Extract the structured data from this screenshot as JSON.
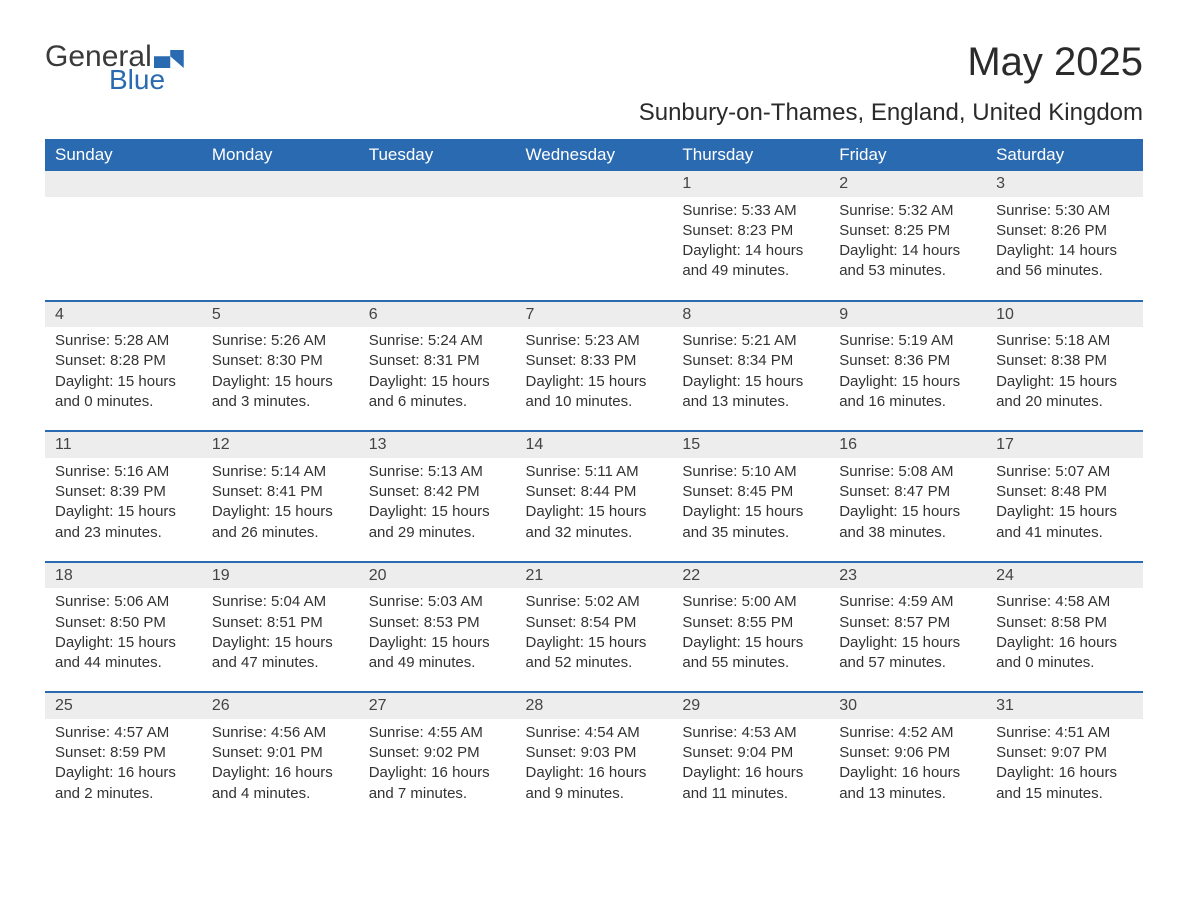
{
  "logo": {
    "text1": "General",
    "text2": "Blue",
    "accent_color": "#2a6ab0"
  },
  "title": "May 2025",
  "subtitle": "Sunbury-on-Thames, England, United Kingdom",
  "colors": {
    "header_bg": "#2a6ab0",
    "header_text": "#ffffff",
    "daynum_bg": "#ededed",
    "daynum_border": "#2a6ab0",
    "body_text": "#333333",
    "page_bg": "#ffffff"
  },
  "typography": {
    "title_fontsize": 40,
    "subtitle_fontsize": 24,
    "header_fontsize": 17,
    "cell_fontsize": 15,
    "font_family": "Arial"
  },
  "layout": {
    "columns": 7,
    "rows": 5,
    "first_day_column_index": 4
  },
  "weekdays": [
    "Sunday",
    "Monday",
    "Tuesday",
    "Wednesday",
    "Thursday",
    "Friday",
    "Saturday"
  ],
  "labels": {
    "sunrise": "Sunrise:",
    "sunset": "Sunset:",
    "daylight": "Daylight:"
  },
  "days": [
    {
      "n": 1,
      "sunrise": "5:33 AM",
      "sunset": "8:23 PM",
      "daylight": "14 hours and 49 minutes."
    },
    {
      "n": 2,
      "sunrise": "5:32 AM",
      "sunset": "8:25 PM",
      "daylight": "14 hours and 53 minutes."
    },
    {
      "n": 3,
      "sunrise": "5:30 AM",
      "sunset": "8:26 PM",
      "daylight": "14 hours and 56 minutes."
    },
    {
      "n": 4,
      "sunrise": "5:28 AM",
      "sunset": "8:28 PM",
      "daylight": "15 hours and 0 minutes."
    },
    {
      "n": 5,
      "sunrise": "5:26 AM",
      "sunset": "8:30 PM",
      "daylight": "15 hours and 3 minutes."
    },
    {
      "n": 6,
      "sunrise": "5:24 AM",
      "sunset": "8:31 PM",
      "daylight": "15 hours and 6 minutes."
    },
    {
      "n": 7,
      "sunrise": "5:23 AM",
      "sunset": "8:33 PM",
      "daylight": "15 hours and 10 minutes."
    },
    {
      "n": 8,
      "sunrise": "5:21 AM",
      "sunset": "8:34 PM",
      "daylight": "15 hours and 13 minutes."
    },
    {
      "n": 9,
      "sunrise": "5:19 AM",
      "sunset": "8:36 PM",
      "daylight": "15 hours and 16 minutes."
    },
    {
      "n": 10,
      "sunrise": "5:18 AM",
      "sunset": "8:38 PM",
      "daylight": "15 hours and 20 minutes."
    },
    {
      "n": 11,
      "sunrise": "5:16 AM",
      "sunset": "8:39 PM",
      "daylight": "15 hours and 23 minutes."
    },
    {
      "n": 12,
      "sunrise": "5:14 AM",
      "sunset": "8:41 PM",
      "daylight": "15 hours and 26 minutes."
    },
    {
      "n": 13,
      "sunrise": "5:13 AM",
      "sunset": "8:42 PM",
      "daylight": "15 hours and 29 minutes."
    },
    {
      "n": 14,
      "sunrise": "5:11 AM",
      "sunset": "8:44 PM",
      "daylight": "15 hours and 32 minutes."
    },
    {
      "n": 15,
      "sunrise": "5:10 AM",
      "sunset": "8:45 PM",
      "daylight": "15 hours and 35 minutes."
    },
    {
      "n": 16,
      "sunrise": "5:08 AM",
      "sunset": "8:47 PM",
      "daylight": "15 hours and 38 minutes."
    },
    {
      "n": 17,
      "sunrise": "5:07 AM",
      "sunset": "8:48 PM",
      "daylight": "15 hours and 41 minutes."
    },
    {
      "n": 18,
      "sunrise": "5:06 AM",
      "sunset": "8:50 PM",
      "daylight": "15 hours and 44 minutes."
    },
    {
      "n": 19,
      "sunrise": "5:04 AM",
      "sunset": "8:51 PM",
      "daylight": "15 hours and 47 minutes."
    },
    {
      "n": 20,
      "sunrise": "5:03 AM",
      "sunset": "8:53 PM",
      "daylight": "15 hours and 49 minutes."
    },
    {
      "n": 21,
      "sunrise": "5:02 AM",
      "sunset": "8:54 PM",
      "daylight": "15 hours and 52 minutes."
    },
    {
      "n": 22,
      "sunrise": "5:00 AM",
      "sunset": "8:55 PM",
      "daylight": "15 hours and 55 minutes."
    },
    {
      "n": 23,
      "sunrise": "4:59 AM",
      "sunset": "8:57 PM",
      "daylight": "15 hours and 57 minutes."
    },
    {
      "n": 24,
      "sunrise": "4:58 AM",
      "sunset": "8:58 PM",
      "daylight": "16 hours and 0 minutes."
    },
    {
      "n": 25,
      "sunrise": "4:57 AM",
      "sunset": "8:59 PM",
      "daylight": "16 hours and 2 minutes."
    },
    {
      "n": 26,
      "sunrise": "4:56 AM",
      "sunset": "9:01 PM",
      "daylight": "16 hours and 4 minutes."
    },
    {
      "n": 27,
      "sunrise": "4:55 AM",
      "sunset": "9:02 PM",
      "daylight": "16 hours and 7 minutes."
    },
    {
      "n": 28,
      "sunrise": "4:54 AM",
      "sunset": "9:03 PM",
      "daylight": "16 hours and 9 minutes."
    },
    {
      "n": 29,
      "sunrise": "4:53 AM",
      "sunset": "9:04 PM",
      "daylight": "16 hours and 11 minutes."
    },
    {
      "n": 30,
      "sunrise": "4:52 AM",
      "sunset": "9:06 PM",
      "daylight": "16 hours and 13 minutes."
    },
    {
      "n": 31,
      "sunrise": "4:51 AM",
      "sunset": "9:07 PM",
      "daylight": "16 hours and 15 minutes."
    }
  ]
}
